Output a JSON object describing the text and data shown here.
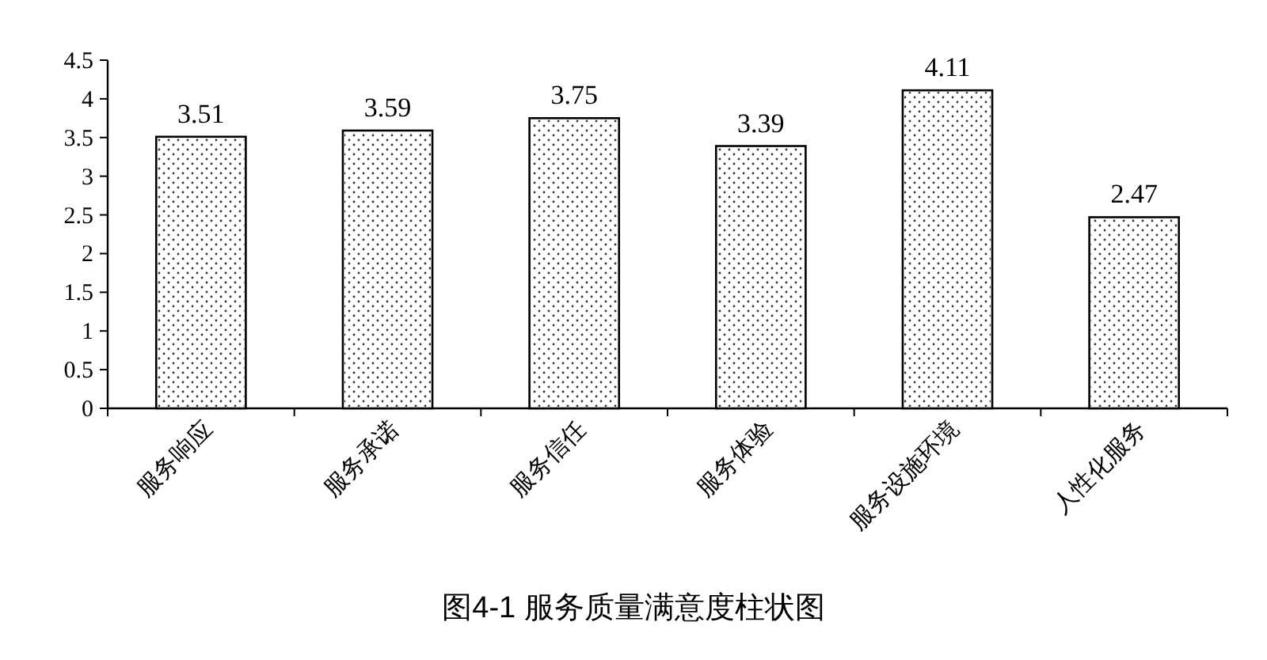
{
  "chart_data": {
    "type": "bar",
    "title": "图4-1 服务质量满意度柱状图",
    "categories": [
      "服务响应",
      "服务承诺",
      "服务信任",
      "服务体验",
      "服务设施环境",
      "人性化服务"
    ],
    "values": [
      3.51,
      3.59,
      3.75,
      3.39,
      4.11,
      2.47
    ],
    "color": "#ffffff",
    "ylim": [
      0,
      4.5
    ],
    "yticks": [
      0,
      0.5,
      1,
      1.5,
      2,
      2.5,
      3,
      3.5,
      4,
      4.5
    ],
    "data_labels": true
  }
}
